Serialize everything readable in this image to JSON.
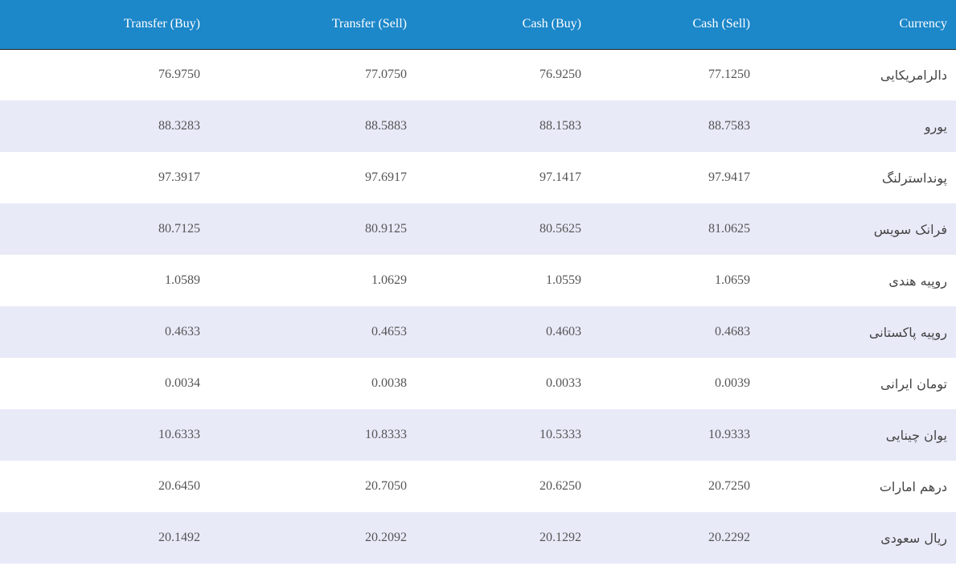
{
  "table": {
    "headers": [
      "Transfer (Buy)",
      "Transfer (Sell)",
      "Cash (Buy)",
      "Cash (Sell)",
      "Currency"
    ],
    "rows": [
      [
        "76.9750",
        "77.0750",
        "76.9250",
        "77.1250",
        "دالرامریکایی"
      ],
      [
        "88.3283",
        "88.5883",
        "88.1583",
        "88.7583",
        "یورو"
      ],
      [
        "97.3917",
        "97.6917",
        "97.1417",
        "97.9417",
        "پونداسترلنگ"
      ],
      [
        "80.7125",
        "80.9125",
        "80.5625",
        "81.0625",
        "فرانک سویس"
      ],
      [
        "1.0589",
        "1.0629",
        "1.0559",
        "1.0659",
        "روپیه هندی"
      ],
      [
        "0.4633",
        "0.4653",
        "0.4603",
        "0.4683",
        "روپیه پاکستانی"
      ],
      [
        "0.0034",
        "0.0038",
        "0.0033",
        "0.0039",
        "تومان ایرانی"
      ],
      [
        "10.6333",
        "10.8333",
        "10.5333",
        "10.9333",
        "یوان چینایی"
      ],
      [
        "20.6450",
        "20.7050",
        "20.6250",
        "20.7250",
        "درهم امارات"
      ],
      [
        "20.1492",
        "20.2092",
        "20.1292",
        "20.2292",
        "ریال سعودی"
      ]
    ]
  },
  "colors": {
    "header_bg": "#1c87c9",
    "row_alt_bg": "#e8eaf8",
    "row_bg": "#ffffff"
  }
}
